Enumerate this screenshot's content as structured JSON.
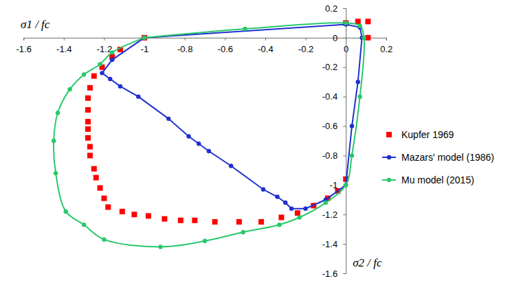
{
  "chart_data": {
    "type": "line",
    "x_label": "σ1 / fc",
    "y_label": "σ2 / fc",
    "xlim": [
      -1.6,
      0.2
    ],
    "ylim": [
      -1.6,
      0.2
    ],
    "xticks": [
      -1.6,
      -1.4,
      -1.2,
      -1,
      -0.8,
      -0.6,
      -0.4,
      -0.2,
      0,
      0.2
    ],
    "yticks": [
      0.2,
      0,
      -0.2,
      -0.4,
      -0.6,
      -0.8,
      -1,
      -1.2,
      -1.4,
      -1.6
    ],
    "grid": false,
    "legend": "right",
    "series": [
      {
        "name": "Kupfer 1969",
        "type": "scatter",
        "marker": "square",
        "color": "#ff0000",
        "x": [
          0,
          0.06,
          0.11,
          0.11,
          -1,
          -1.12,
          -1.16,
          -1.21,
          -1.25,
          -1.27,
          -1.28,
          -1.28,
          -1.28,
          -1.28,
          -1.28,
          -1.27,
          -1.27,
          -1.25,
          -1.24,
          -1.22,
          -1.2,
          -1.18,
          -1.11,
          -1.05,
          -0.98,
          -0.9,
          -0.82,
          -0.75,
          -0.65,
          -0.53,
          -0.42,
          -0.32,
          -0.24,
          -0.16,
          -0.09,
          -0.04,
          0
        ],
        "values": [
          0.1,
          0.11,
          0.11,
          0,
          0,
          -0.08,
          -0.13,
          -0.2,
          -0.26,
          -0.34,
          -0.41,
          -0.49,
          -0.57,
          -0.62,
          -0.68,
          -0.74,
          -0.8,
          -0.89,
          -0.95,
          -1.02,
          -1.09,
          -1.15,
          -1.18,
          -1.2,
          -1.21,
          -1.23,
          -1.24,
          -1.24,
          -1.25,
          -1.25,
          -1.25,
          -1.22,
          -1.19,
          -1.14,
          -1.09,
          -1.04,
          -0.96
        ]
      },
      {
        "name": "Mazars' model (1986)",
        "type": "line",
        "marker": "circle",
        "line_style": "solid",
        "color": "#1f2fd0",
        "x": [
          -1,
          0,
          0.07,
          0.08,
          0.06,
          0.03,
          0,
          -0.1,
          -0.2,
          -0.27,
          -0.3,
          -0.34,
          -0.41,
          -0.57,
          -0.68,
          -0.73,
          -0.78,
          -0.88,
          -1.03,
          -1.12,
          -1.17,
          -1.21,
          -1.16,
          -1
        ],
        "values": [
          0,
          0.09,
          0.07,
          0,
          -0.3,
          -0.6,
          -1,
          -1.1,
          -1.16,
          -1.16,
          -1.12,
          -1.08,
          -1.03,
          -0.87,
          -0.77,
          -0.72,
          -0.67,
          -0.55,
          -0.4,
          -0.33,
          -0.28,
          -0.24,
          -0.15,
          0
        ]
      },
      {
        "name": "Mu model (2015)",
        "type": "line",
        "marker": "circle",
        "line_style": "solid",
        "color": "#27c86a",
        "x": [
          -1,
          -0.5,
          0,
          0.07,
          0.09,
          0.07,
          0.03,
          0,
          -0.1,
          -0.23,
          -0.33,
          -0.51,
          -0.7,
          -0.92,
          -1.2,
          -1.3,
          -1.39,
          -1.44,
          -1.45,
          -1.43,
          -1.37,
          -1.3,
          -1.22,
          -1.16,
          -1
        ],
        "values": [
          0,
          0.06,
          0.1,
          0.08,
          0,
          -0.4,
          -0.8,
          -1,
          -1.12,
          -1.22,
          -1.27,
          -1.32,
          -1.38,
          -1.42,
          -1.37,
          -1.27,
          -1.18,
          -0.92,
          -0.7,
          -0.51,
          -0.35,
          -0.25,
          -0.18,
          -0.1,
          0
        ]
      }
    ]
  }
}
